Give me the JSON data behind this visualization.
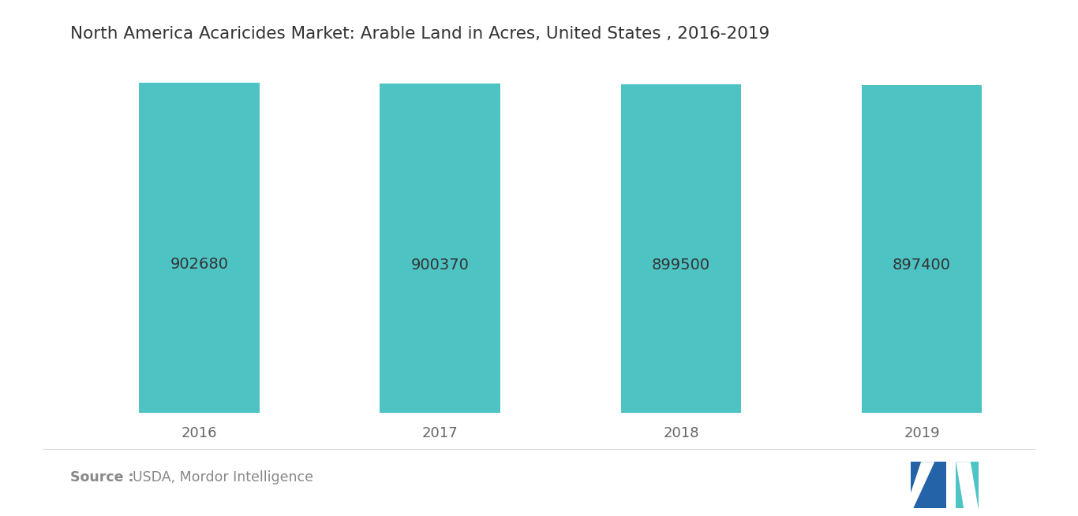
{
  "title": "North America Acaricides Market: Arable Land in Acres, United States , 2016-2019",
  "categories": [
    "2016",
    "2017",
    "2018",
    "2019"
  ],
  "values": [
    902680,
    900370,
    899500,
    897400
  ],
  "bar_color": "#4EC3C4",
  "label_color": "#333333",
  "background_color": "#ffffff",
  "title_fontsize": 15.5,
  "label_fontsize": 14,
  "tick_fontsize": 13,
  "source_bold": "Source :",
  "source_rest": "USDA, Mordor Intelligence",
  "source_color": "#888888",
  "ylim_min": 0,
  "ylim_max": 960000,
  "bar_width": 0.5,
  "title_color": "#333333",
  "tick_color": "#666666"
}
